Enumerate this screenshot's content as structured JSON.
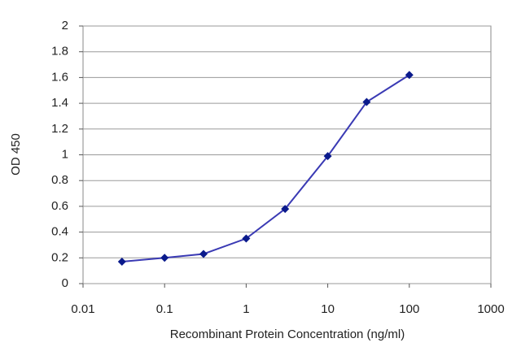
{
  "chart_data": {
    "type": "line",
    "xlabel": "Recombinant Protein Concentration (ng/ml)",
    "ylabel": "OD 450",
    "x": [
      0.03,
      0.1,
      0.3,
      1,
      3,
      10,
      30,
      100
    ],
    "values": [
      0.17,
      0.2,
      0.23,
      0.35,
      0.58,
      0.99,
      1.41,
      1.62
    ],
    "color": "#3a3ab4",
    "marker_color": "#0a1a8c",
    "xscale": "log",
    "xlim": [
      0.01,
      1000
    ],
    "xticks": [
      0.01,
      0.1,
      1,
      10,
      100,
      1000
    ],
    "ylim": [
      0,
      2
    ],
    "yticks": [
      0,
      0.2,
      0.4,
      0.6,
      0.8,
      1,
      1.2,
      1.4,
      1.6,
      1.8,
      2
    ],
    "grid": true
  }
}
